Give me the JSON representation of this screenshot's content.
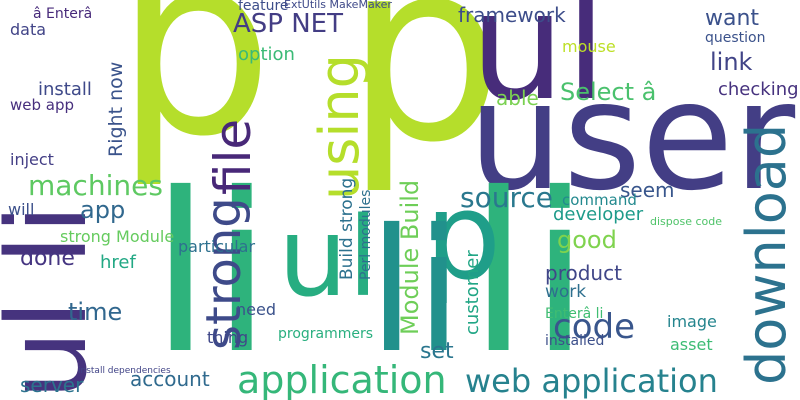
{
  "words": [
    {
      "text": "p",
      "color": "#b5de2b"
    },
    {
      "text": "p",
      "color": "#b5de2b"
    },
    {
      "text": "user",
      "color": "#433e85"
    },
    {
      "text": "ul",
      "color": "#472c7a"
    },
    {
      "text": "ul",
      "color": "#46337e"
    },
    {
      "text": "li",
      "color": "#46337e"
    },
    {
      "text": "li",
      "color": "#2eb37c"
    },
    {
      "text": "li",
      "color": "#2eb37c"
    },
    {
      "text": "ul",
      "color": "#27ad81"
    },
    {
      "text": "p",
      "color": "#1f9e89"
    },
    {
      "text": "li",
      "color": "#21918c"
    },
    {
      "text": "download",
      "color": "#2c728e"
    },
    {
      "text": "strong",
      "color": "#3e4a89"
    },
    {
      "text": "using",
      "color": "#b5de2b"
    },
    {
      "text": "file",
      "color": "#482878"
    },
    {
      "text": "application",
      "color": "#35b779"
    },
    {
      "text": "web application",
      "color": "#26828e"
    },
    {
      "text": "code",
      "color": "#39568c"
    },
    {
      "text": "source",
      "color": "#2a788e"
    },
    {
      "text": "machines",
      "color": "#5ec962"
    },
    {
      "text": "ASP NET",
      "color": "#433d84"
    },
    {
      "text": "framework",
      "color": "#3d4d8a"
    },
    {
      "text": "want",
      "color": "#3b518b"
    },
    {
      "text": "link",
      "color": "#414487"
    },
    {
      "text": "checking",
      "color": "#46327e"
    },
    {
      "text": "question",
      "color": "#3b528b"
    },
    {
      "text": "Select â",
      "color": "#4ac16d"
    },
    {
      "text": "able",
      "color": "#7ad151"
    },
    {
      "text": "app",
      "color": "#31688e"
    },
    {
      "text": "Right now",
      "color": "#3a538b"
    },
    {
      "text": "install",
      "color": "#3e4989"
    },
    {
      "text": "web app",
      "color": "#472f7d"
    },
    {
      "text": "data",
      "color": "#414487"
    },
    {
      "text": "option",
      "color": "#3aba76"
    },
    {
      "text": "mouse",
      "color": "#bddf26"
    },
    {
      "text": "Build strong",
      "color": "#2c718e"
    },
    {
      "text": "Perl modules",
      "color": "#2d708e"
    },
    {
      "text": "Module Build",
      "color": "#6ece58"
    },
    {
      "text": "customer",
      "color": "#21a685"
    },
    {
      "text": "seem",
      "color": "#39568c"
    },
    {
      "text": "good",
      "color": "#7fd34e"
    },
    {
      "text": "developer",
      "color": "#1e9b8a"
    },
    {
      "text": "command",
      "color": "#23898e"
    },
    {
      "text": "product",
      "color": "#404688"
    },
    {
      "text": "work",
      "color": "#2e6f8e"
    },
    {
      "text": "image",
      "color": "#25858e"
    },
    {
      "text": "asset",
      "color": "#3dbc74"
    },
    {
      "text": "installed",
      "color": "#3c4f8a"
    },
    {
      "text": "set",
      "color": "#2a768e"
    },
    {
      "text": "server",
      "color": "#2c738e"
    },
    {
      "text": "account",
      "color": "#306a8e"
    },
    {
      "text": "time",
      "color": "#31678e"
    },
    {
      "text": "done",
      "color": "#453581"
    },
    {
      "text": "will",
      "color": "#3c508b"
    },
    {
      "text": "strong Module",
      "color": "#65cb5e"
    },
    {
      "text": "href",
      "color": "#22a884"
    },
    {
      "text": "particular",
      "color": "#2d708e"
    },
    {
      "text": "need",
      "color": "#3b528b"
    },
    {
      "text": "thing",
      "color": "#3f4788"
    },
    {
      "text": "programmers",
      "color": "#29af7f"
    },
    {
      "text": "inject",
      "color": "#433e85"
    },
    {
      "text": "feature",
      "color": "#3d4e8a"
    },
    {
      "text": "ExtUtils MakeMaker",
      "color": "#3e4989"
    },
    {
      "text": "Enterâ li",
      "color": "#40bd72"
    },
    {
      "text": "dispose code",
      "color": "#4fc369"
    },
    {
      "text": "â Enterâ",
      "color": "#472a7a"
    },
    {
      "text": "install dependencies",
      "color": "#414487"
    }
  ]
}
